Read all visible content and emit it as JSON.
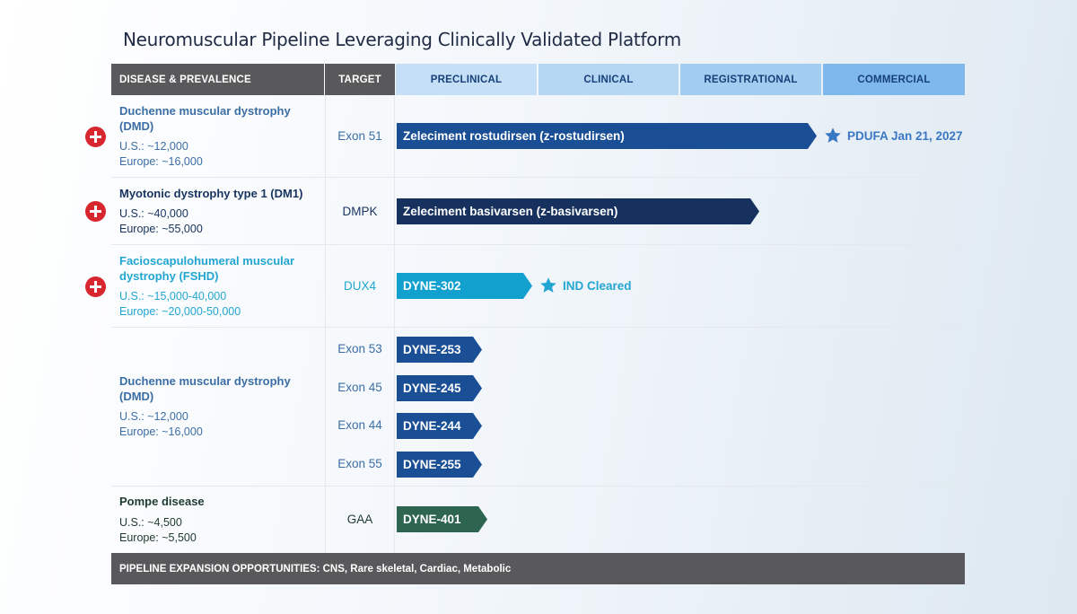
{
  "title": "Neuromuscular Pipeline Leveraging Clinically Validated Platform",
  "headers": {
    "disease": "DISEASE & PREVALENCE",
    "target": "TARGET",
    "phases": [
      "PRECLINICAL",
      "CLINICAL",
      "REGISTRATIONAL",
      "COMMERCIAL"
    ]
  },
  "colors": {
    "phase_bg": [
      "#c4dff6",
      "#b5d7f3",
      "#a2cdf0",
      "#7fb8ec"
    ],
    "dmd": "#3b6ea5",
    "dm1": "#17335f",
    "fshd": "#22a6d1",
    "pompe": "#2f5f4a",
    "bar_dmd": "#1a4f95",
    "bar_dm1": "#16315e",
    "bar_fshd": "#12a0cf",
    "bar_pompe": "#2e6551",
    "star": "#3a78c3",
    "plus": "#d7262e"
  },
  "diseases": [
    {
      "name": "Duchenne muscular dystrophy (DMD)",
      "us": "U.S.: ~12,000",
      "europe": "Europe: ~16,000"
    },
    {
      "name": "Myotonic dystrophy type 1 (DM1)",
      "us": "U.S.: ~40,000",
      "europe": "Europe: ~55,000"
    },
    {
      "name": "Facioscapulohumeral muscular dystrophy (FSHD)",
      "us": "U.S.: ~15,000-40,000",
      "europe": "Europe: ~20,000-50,000"
    },
    {
      "name": "Duchenne muscular dystrophy (DMD)",
      "us": "U.S.: ~12,000",
      "europe": "Europe: ~16,000"
    },
    {
      "name": "Pompe disease",
      "us": "U.S.: ~4,500",
      "europe": "Europe: ~5,500"
    }
  ],
  "chart_data": {
    "type": "bar",
    "phases": [
      "PRECLINICAL",
      "CLINICAL",
      "REGISTRATIONAL",
      "COMMERCIAL"
    ],
    "programs": [
      {
        "name": "Zeleciment rostudirsen (z-rostudirsen)",
        "target": "Exon 51",
        "disease": "Duchenne muscular dystrophy (DMD)",
        "progress_phases": 2.95,
        "breakthrough": true,
        "milestone": "PDUFA Jan 21, 2027"
      },
      {
        "name": "Zeleciment basivarsen (z-basivarsen)",
        "target": "DMPK",
        "disease": "Myotonic dystrophy type 1 (DM1)",
        "progress_phases": 2.55,
        "breakthrough": true,
        "milestone": ""
      },
      {
        "name": "DYNE-302",
        "target": "DUX4",
        "disease": "Facioscapulohumeral muscular dystrophy (FSHD)",
        "progress_phases": 0.95,
        "breakthrough": true,
        "milestone": "IND Cleared"
      },
      {
        "name": "DYNE-253",
        "target": "Exon 53",
        "disease": "Duchenne muscular dystrophy (DMD)",
        "progress_phases": 0.6,
        "breakthrough": false,
        "milestone": ""
      },
      {
        "name": "DYNE-245",
        "target": "Exon 45",
        "disease": "Duchenne muscular dystrophy (DMD)",
        "progress_phases": 0.6,
        "breakthrough": false,
        "milestone": ""
      },
      {
        "name": "DYNE-244",
        "target": "Exon 44",
        "disease": "Duchenne muscular dystrophy (DMD)",
        "progress_phases": 0.6,
        "breakthrough": false,
        "milestone": ""
      },
      {
        "name": "DYNE-255",
        "target": "Exon 55",
        "disease": "Duchenne muscular dystrophy (DMD)",
        "progress_phases": 0.6,
        "breakthrough": false,
        "milestone": ""
      },
      {
        "name": "DYNE-401",
        "target": "GAA",
        "disease": "Pompe disease",
        "progress_phases": 0.64,
        "breakthrough": false,
        "milestone": ""
      }
    ]
  },
  "footer": "PIPELINE EXPANSION OPPORTUNITIES:  CNS, Rare skeletal, Cardiac, Metabolic"
}
